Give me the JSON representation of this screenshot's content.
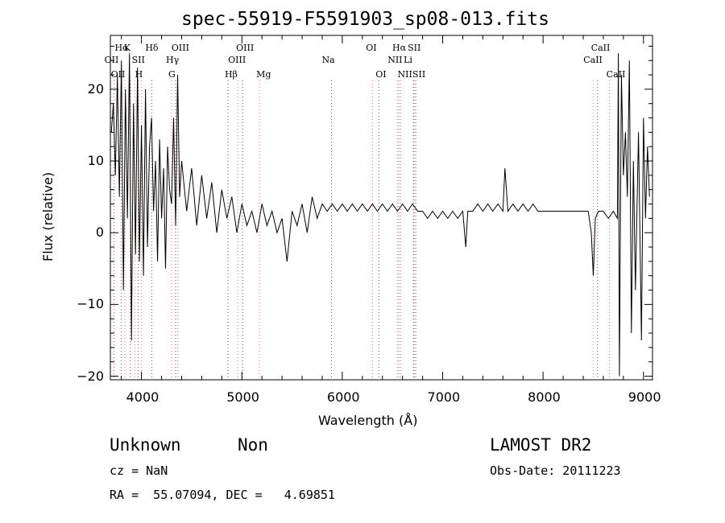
{
  "chart_data": {
    "type": "line",
    "title": "spec-55919-F5591903_sp08-013.fits",
    "xlabel": "Wavelength (Å)",
    "ylabel": "Flux (relative)",
    "xlim": [
      3690,
      9090
    ],
    "ylim": [
      -20.5,
      27.5
    ],
    "x_ticks": [
      4000,
      5000,
      6000,
      7000,
      8000,
      9000
    ],
    "x_tick_labels": [
      "4000",
      "5000",
      "6000",
      "7000",
      "8000",
      "9000"
    ],
    "y_ticks": [
      -20,
      -10,
      0,
      10,
      20
    ],
    "y_tick_labels": [
      "−20",
      "−10",
      "0",
      "10",
      "20"
    ],
    "series": [
      {
        "x": [
          3700,
          3720,
          3740,
          3760,
          3780,
          3800,
          3820,
          3840,
          3860,
          3880,
          3900,
          3920,
          3940,
          3960,
          3980,
          4000,
          4020,
          4040,
          4060,
          4080,
          4100,
          4120,
          4140,
          4160,
          4180,
          4200,
          4220,
          4240,
          4260,
          4280,
          4300,
          4320,
          4340,
          4360,
          4380,
          4400,
          4450,
          4500,
          4550,
          4600,
          4650,
          4700,
          4750,
          4800,
          4850,
          4900,
          4950,
          5000,
          5050,
          5100,
          5150,
          5200,
          5250,
          5300,
          5350,
          5400,
          5450,
          5500,
          5550,
          5600,
          5650,
          5700,
          5750,
          5800,
          5850,
          5900,
          5950,
          6000,
          6050,
          6100,
          6150,
          6200,
          6250,
          6300,
          6350,
          6400,
          6450,
          6500,
          6550,
          6600,
          6650,
          6700,
          6750,
          6800,
          6850,
          6900,
          6950,
          7000,
          7050,
          7100,
          7150,
          7200,
          7230,
          7250,
          7300,
          7350,
          7400,
          7450,
          7500,
          7550,
          7600,
          7620,
          7650,
          7700,
          7750,
          7800,
          7850,
          7900,
          7950,
          8000,
          8050,
          8100,
          8150,
          8200,
          8250,
          8300,
          8350,
          8400,
          8450,
          8480,
          8500,
          8520,
          8550,
          8600,
          8650,
          8700,
          8740,
          8750,
          8760,
          8780,
          8800,
          8820,
          8840,
          8860,
          8880,
          8900,
          8920,
          8950,
          8980,
          9000,
          9020,
          9040,
          9060
        ],
        "y": [
          14,
          18,
          8,
          22,
          5,
          24,
          -8,
          20,
          2,
          25,
          -15,
          18,
          -3,
          23,
          -4,
          15,
          -6,
          20,
          -2,
          12,
          16,
          3,
          10,
          -4,
          13,
          2,
          9,
          -5,
          12,
          6,
          4,
          16,
          1,
          22,
          5,
          10,
          3,
          9,
          1,
          8,
          2,
          7,
          0,
          6,
          2,
          5,
          0,
          4,
          1,
          3,
          0,
          4,
          1,
          3,
          0,
          2,
          -4,
          3,
          1,
          4,
          0,
          5,
          2,
          4,
          3,
          4,
          3,
          4,
          3,
          4,
          3,
          4,
          3,
          4,
          3,
          4,
          3,
          4,
          3,
          4,
          3,
          4,
          3,
          3,
          2,
          3,
          2,
          3,
          2,
          3,
          2,
          3,
          -2,
          3,
          3,
          4,
          3,
          4,
          3,
          4,
          3,
          9,
          3,
          4,
          3,
          4,
          3,
          4,
          3,
          3,
          3,
          3,
          3,
          3,
          3,
          3,
          3,
          3,
          3,
          0,
          -6,
          2,
          3,
          3,
          2,
          3,
          2,
          25,
          -20,
          22,
          8,
          14,
          5,
          24,
          -14,
          10,
          -8,
          14,
          -15,
          16,
          2,
          12,
          5
        ]
      }
    ],
    "grid": false,
    "legend": "none",
    "line_markers": [
      {
        "x": 3727,
        "label": "OII",
        "row": 1
      },
      {
        "x": 3727,
        "label": "OII",
        "row": 2
      },
      {
        "x": 3798,
        "label": "Hα",
        "row": 0
      },
      {
        "x": 3835,
        "label": "",
        "row": -1
      },
      {
        "x": 3889,
        "label": "K",
        "row": 0
      },
      {
        "x": 3934,
        "label": "",
        "row": -1
      },
      {
        "x": 3968,
        "label": "H",
        "row": 2
      },
      {
        "x": 4000,
        "label": "SII",
        "row": 1
      },
      {
        "x": 4102,
        "label": "Hδ",
        "row": 0
      },
      {
        "x": 4300,
        "label": "G",
        "row": 2
      },
      {
        "x": 4340,
        "label": "Hγ",
        "row": 1
      },
      {
        "x": 4363,
        "label": "OIII",
        "row": 0
      },
      {
        "x": 4861,
        "label": "Hβ",
        "row": 2
      },
      {
        "x": 4959,
        "label": "OIII",
        "row": 1
      },
      {
        "x": 5007,
        "label": "OIII",
        "row": 0
      },
      {
        "x": 5175,
        "label": "Mg",
        "row": 2
      },
      {
        "x": 5893,
        "label": "Na",
        "row": 1
      },
      {
        "x": 6300,
        "label": "OI",
        "row": 0
      },
      {
        "x": 6364,
        "label": "OI",
        "row": 2
      },
      {
        "x": 6548,
        "label": "NII",
        "row": 1
      },
      {
        "x": 6563,
        "label": "Hα",
        "row": 0
      },
      {
        "x": 6583,
        "label": "NII",
        "row": 2
      },
      {
        "x": 6708,
        "label": "Li",
        "row": 1
      },
      {
        "x": 6716,
        "label": "SII",
        "row": 0
      },
      {
        "x": 6731,
        "label": "SII",
        "row": 2
      },
      {
        "x": 8498,
        "label": "CaII",
        "row": 1
      },
      {
        "x": 8542,
        "label": "CaII",
        "row": 0
      },
      {
        "x": 8662,
        "label": "CaII",
        "row": 2
      }
    ]
  },
  "info": {
    "class": "Unknown",
    "subclass": "Non",
    "survey": "LAMOST DR2",
    "cz": "cz = NaN",
    "obs_date": "Obs-Date: 20111223",
    "coords": "RA =  55.07094, DEC =   4.69851"
  },
  "colors": {
    "spectrum": "#000000",
    "marker_lines": "#ff6666",
    "marker_dots": "#555555"
  }
}
